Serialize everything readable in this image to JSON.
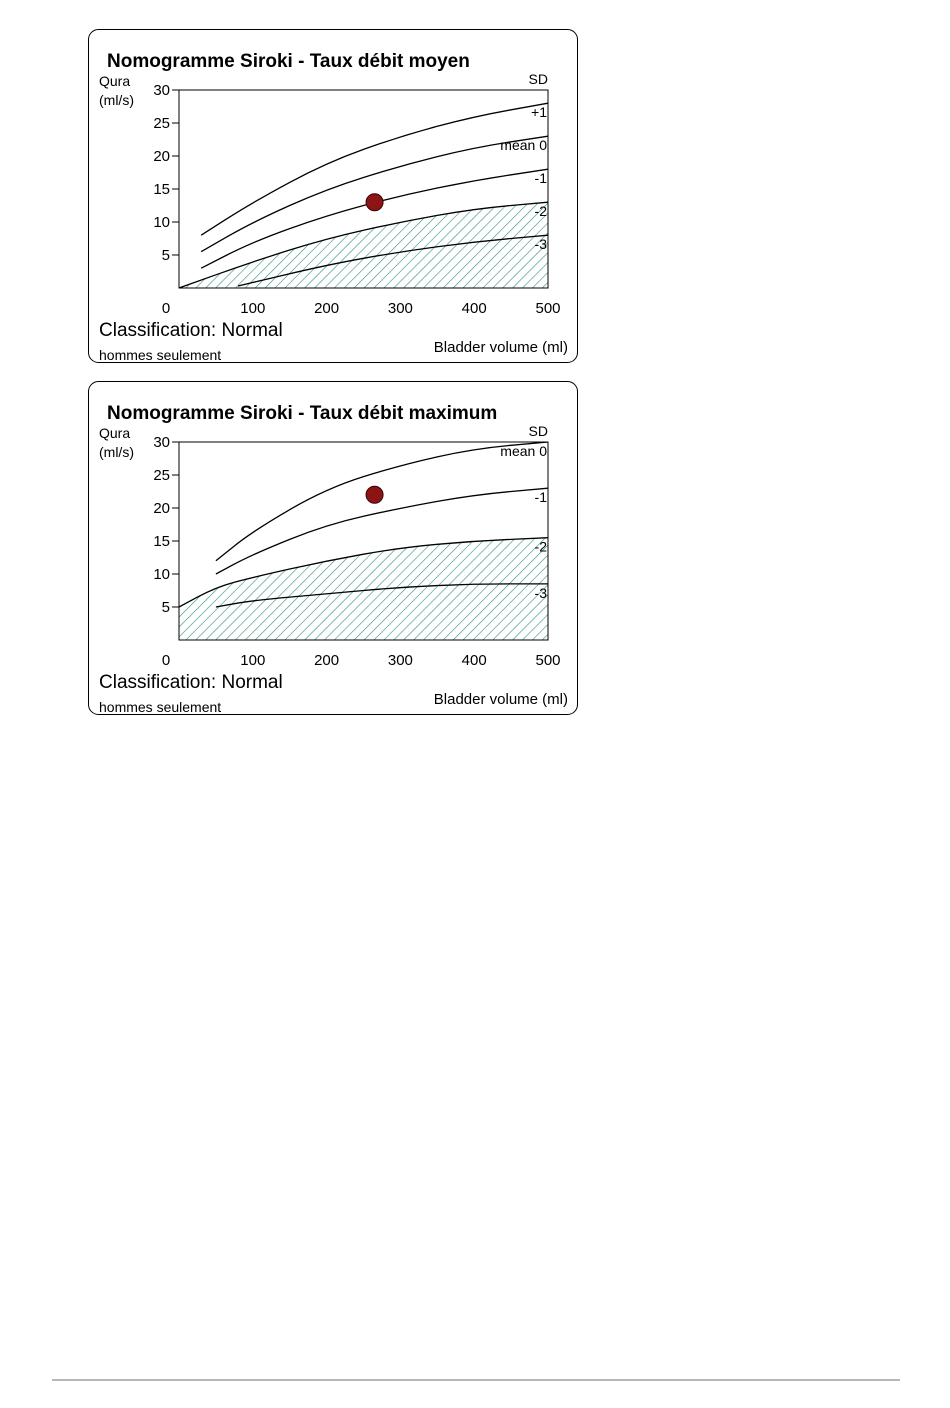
{
  "chart_data": [
    {
      "type": "line",
      "title": "Nomogramme Siroki - Taux débit moyen",
      "ylabel": [
        "Qura",
        "(ml/s)"
      ],
      "xlabel": "Bladder volume (ml)",
      "legend_title": "SD",
      "xlim": [
        0,
        500
      ],
      "ylim": [
        0,
        30
      ],
      "xticks": [
        0,
        100,
        200,
        300,
        400,
        500
      ],
      "yticks": [
        5,
        10,
        15,
        20,
        25,
        30
      ],
      "classification": "Classification: Normal",
      "note": "hommes seulement",
      "shaded_region": "between -2 and the x-axis",
      "series": [
        {
          "name": "+1",
          "x": [
            30,
            100,
            200,
            300,
            400,
            500
          ],
          "y": [
            8,
            13,
            19,
            23,
            26,
            28
          ]
        },
        {
          "name": "mean 0",
          "x": [
            30,
            100,
            200,
            300,
            400,
            500
          ],
          "y": [
            5.5,
            10,
            15,
            18.5,
            21.3,
            23
          ]
        },
        {
          "name": "-1",
          "x": [
            30,
            100,
            200,
            300,
            400,
            500
          ],
          "y": [
            3,
            7,
            11,
            14,
            16.3,
            18
          ]
        },
        {
          "name": "-2",
          "x": [
            0,
            100,
            200,
            300,
            400,
            500
          ],
          "y": [
            0,
            4,
            7.5,
            10,
            12,
            13
          ]
        },
        {
          "name": "-3",
          "x": [
            80,
            200,
            300,
            400,
            500
          ],
          "y": [
            0.3,
            3.5,
            5.5,
            7,
            8
          ]
        }
      ],
      "point": {
        "x": 265,
        "y": 13,
        "color": "#8b1414"
      }
    },
    {
      "type": "line",
      "title": "Nomogramme Siroki - Taux débit maximum",
      "ylabel": [
        "Qura",
        "(ml/s)"
      ],
      "xlabel": "Bladder volume (ml)",
      "legend_title": "SD",
      "xlim": [
        0,
        500
      ],
      "ylim": [
        0,
        30
      ],
      "xticks": [
        0,
        100,
        200,
        300,
        400,
        500
      ],
      "yticks": [
        5,
        10,
        15,
        20,
        25,
        30
      ],
      "classification": "Classification: Normal",
      "note": "hommes seulement",
      "shaded_region": "between -2 and the x-axis",
      "series": [
        {
          "name": "mean 0",
          "x": [
            50,
            100,
            200,
            300,
            400,
            500
          ],
          "y": [
            12,
            16.5,
            23,
            26.5,
            29,
            30
          ]
        },
        {
          "name": "-1",
          "x": [
            50,
            100,
            200,
            300,
            400,
            500
          ],
          "y": [
            10,
            13,
            17.5,
            20,
            22,
            23
          ]
        },
        {
          "name": "-2",
          "x": [
            0,
            50,
            100,
            200,
            300,
            400,
            500
          ],
          "y": [
            5,
            8,
            9.5,
            12,
            14,
            15,
            15.5
          ]
        },
        {
          "name": "-3",
          "x": [
            50,
            100,
            200,
            300,
            400,
            500
          ],
          "y": [
            5,
            6,
            7,
            8,
            8.5,
            8.5
          ]
        }
      ],
      "point": {
        "x": 265,
        "y": 22,
        "color": "#8b1414"
      }
    }
  ]
}
